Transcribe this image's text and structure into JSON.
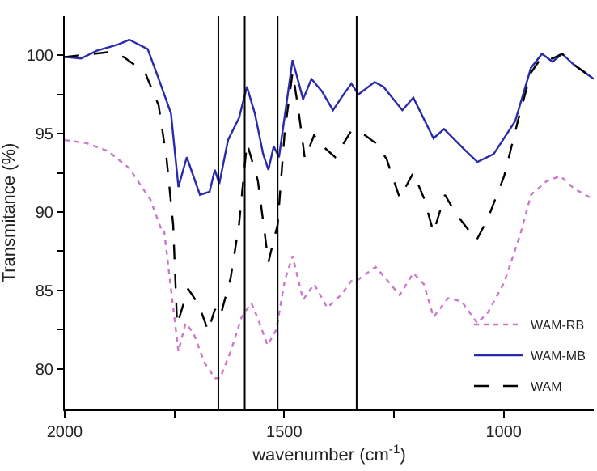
{
  "chart_data": {
    "type": "line",
    "xlabel": "wavenumber (cm$^{-1}$)",
    "ylabel": "Transmitance (%)",
    "xlim": [
      2000,
      795
    ],
    "ylim": [
      77.4,
      102.5
    ],
    "xticks": [
      2000,
      {
        "value": 1750,
        "label": null
      },
      1500,
      {
        "value": 1250,
        "label": null
      },
      1000
    ],
    "yticks": [
      80,
      {
        "value": 82.5,
        "label": null
      },
      85,
      {
        "value": 87.5,
        "label": null
      },
      90,
      {
        "value": 92.5,
        "label": null
      },
      95,
      {
        "value": 97.5,
        "label": null
      },
      100
    ],
    "legend": "bottom right",
    "marker": "none",
    "series": [
      {
        "name": "WAM-RB",
        "color": "#cc77cc",
        "line_style": "dotted",
        "x": [
          2000,
          1951,
          1902,
          1853,
          1805,
          1780,
          1774,
          1758,
          1741,
          1725,
          1707,
          1682,
          1658,
          1646,
          1622,
          1597,
          1575,
          1560,
          1538,
          1518,
          1499,
          1481,
          1457,
          1432,
          1402,
          1371,
          1347,
          1331,
          1292,
          1267,
          1237,
          1206,
          1182,
          1160,
          1127,
          1096,
          1060,
          1036,
          999,
          962,
          938,
          901,
          871,
          840,
          795
        ],
        "values": [
          94.6,
          94.4,
          93.9,
          92.8,
          90.8,
          88.9,
          88.9,
          85.1,
          81.1,
          82.9,
          82.3,
          80.4,
          79.4,
          79.4,
          81.1,
          83.3,
          84.2,
          83.2,
          81.5,
          82.5,
          85.6,
          87.2,
          84.4,
          85.4,
          83.9,
          84.7,
          85.6,
          85.7,
          86.5,
          85.7,
          84.7,
          86.1,
          85.4,
          83.3,
          84.5,
          84.3,
          82.9,
          83.6,
          85.5,
          88.6,
          91.1,
          92.0,
          92.3,
          91.5,
          90.8
        ]
      },
      {
        "name": "WAM-MB",
        "color": "#2a2aaa",
        "line_style": "solid",
        "x": [
          2000,
          1963,
          1927,
          1878,
          1853,
          1811,
          1786,
          1758,
          1741,
          1722,
          1692,
          1670,
          1658,
          1648,
          1628,
          1603,
          1585,
          1567,
          1548,
          1536,
          1524,
          1512,
          1481,
          1457,
          1438,
          1414,
          1389,
          1365,
          1347,
          1331,
          1294,
          1274,
          1231,
          1206,
          1160,
          1136,
          1090,
          1060,
          1023,
          974,
          938,
          913,
          889,
          867,
          840,
          795
        ],
        "values": [
          99.9,
          99.8,
          100.3,
          100.7,
          101.0,
          100.4,
          98.5,
          96.3,
          91.6,
          93.5,
          91.1,
          91.3,
          92.7,
          91.8,
          94.6,
          96.0,
          98.0,
          96.3,
          93.7,
          92.7,
          94.2,
          93.5,
          99.7,
          97.2,
          98.5,
          97.7,
          96.5,
          97.5,
          98.2,
          97.5,
          98.3,
          98.0,
          96.5,
          97.3,
          94.7,
          95.3,
          94.0,
          93.2,
          93.7,
          95.8,
          99.2,
          100.1,
          99.6,
          100.1,
          99.4,
          98.5
        ]
      },
      {
        "name": "WAM",
        "color": "#000000",
        "line_style": "dashed",
        "x": [
          2000,
          1902,
          1866,
          1817,
          1786,
          1768,
          1753,
          1744,
          1719,
          1695,
          1673,
          1658,
          1646,
          1622,
          1603,
          1585,
          1560,
          1536,
          1524,
          1515,
          1499,
          1481,
          1469,
          1453,
          1432,
          1408,
          1384,
          1347,
          1316,
          1292,
          1267,
          1237,
          1206,
          1182,
          1160,
          1134,
          1109,
          1062,
          1036,
          999,
          968,
          938,
          913,
          889,
          867,
          840,
          795
        ],
        "values": [
          99.9,
          100.2,
          99.9,
          98.9,
          96.8,
          93.4,
          89.2,
          82.8,
          85.1,
          84.1,
          82.4,
          83.8,
          83.3,
          85.8,
          89.2,
          94.4,
          92.0,
          86.8,
          88.2,
          89.2,
          95.1,
          98.9,
          96.8,
          93.4,
          94.9,
          94.1,
          93.5,
          95.2,
          94.9,
          94.4,
          93.4,
          90.9,
          92.5,
          90.9,
          88.7,
          91.1,
          89.9,
          88.2,
          89.6,
          92.3,
          95.8,
          98.9,
          99.9,
          99.8,
          100.1,
          99.4,
          98.5
        ]
      }
    ],
    "ref_lines": [
      {
        "axis": "x",
        "value": 1650,
        "color": "#000000"
      },
      {
        "axis": "x",
        "value": 1590,
        "color": "#000000"
      },
      {
        "axis": "x",
        "value": 1515,
        "color": "#000000"
      },
      {
        "axis": "x",
        "value": 1335,
        "color": "#000000"
      }
    ]
  }
}
